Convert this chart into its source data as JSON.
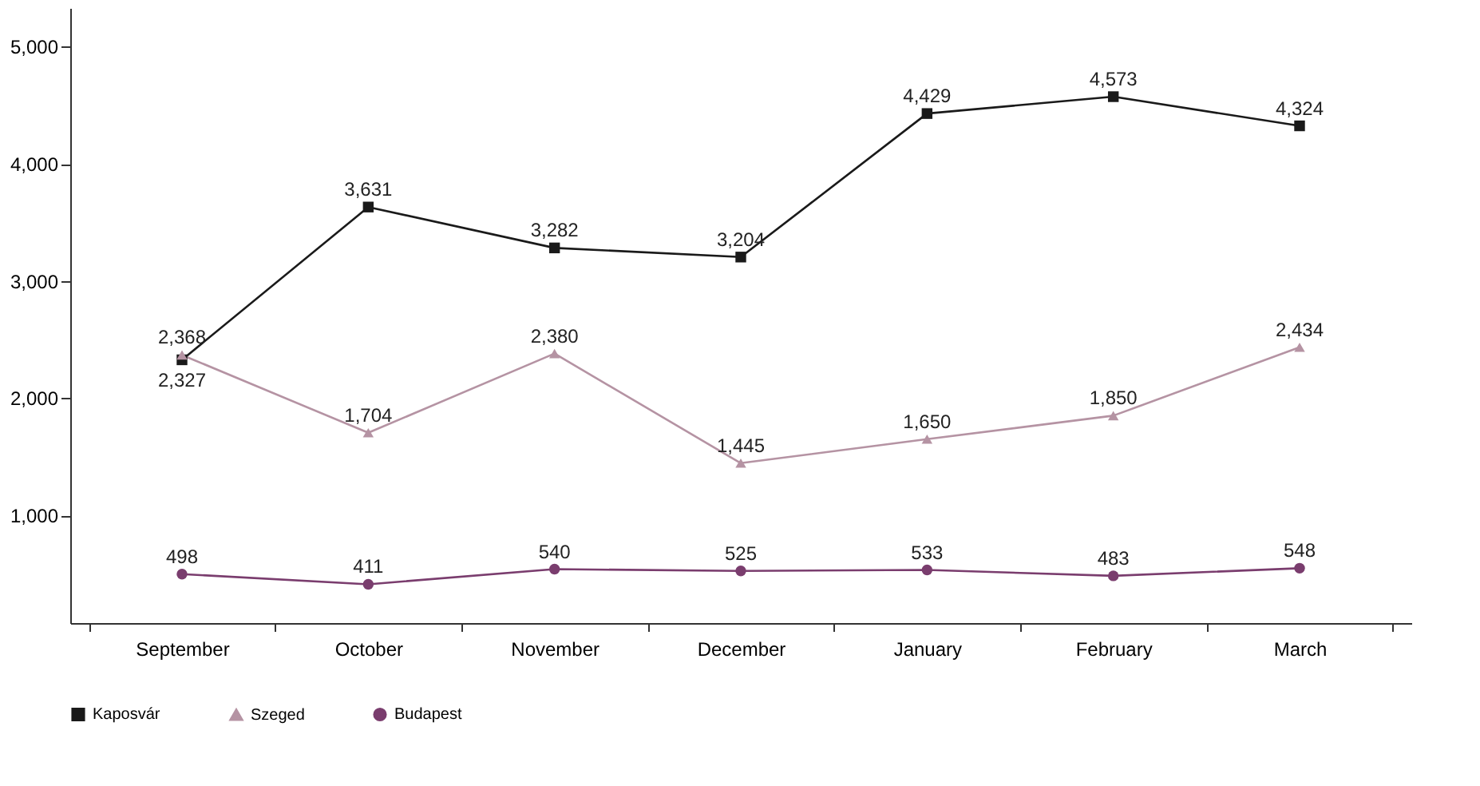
{
  "chart_data": {
    "type": "line",
    "categories": [
      "September",
      "October",
      "November",
      "December",
      "January",
      "February",
      "March"
    ],
    "series": [
      {
        "name": "Kaposvár",
        "color": "#1a1a1a",
        "marker": "square",
        "values": [
          2327,
          3631,
          3282,
          3204,
          4429,
          4573,
          4324
        ],
        "value_labels": [
          "2,327",
          "3,631",
          "3,282",
          "3,204",
          "4,429",
          "4,573",
          "4,324"
        ]
      },
      {
        "name": "Szeged",
        "color": "#b593a3",
        "marker": "triangle",
        "values": [
          2368,
          1704,
          2380,
          1445,
          1650,
          1850,
          2434
        ],
        "value_labels": [
          "2,368",
          "1,704",
          "2,380",
          "1,445",
          "1,650",
          "1,850",
          "2,434"
        ]
      },
      {
        "name": "Budapest",
        "color": "#7a3d6e",
        "marker": "circle",
        "values": [
          498,
          411,
          540,
          525,
          533,
          483,
          548
        ],
        "value_labels": [
          "498",
          "411",
          "540",
          "525",
          "533",
          "483",
          "548"
        ]
      }
    ],
    "ylim": [
      80,
      5330
    ],
    "yticks": [
      {
        "value": 1000,
        "label": "1,000"
      },
      {
        "value": 2000,
        "label": "2,000"
      },
      {
        "value": 3000,
        "label": "3,000"
      },
      {
        "value": 4000,
        "label": "4,000"
      },
      {
        "value": 5000,
        "label": "5,000"
      }
    ],
    "grid": false,
    "legend": "bottom",
    "line_style": "solid"
  }
}
